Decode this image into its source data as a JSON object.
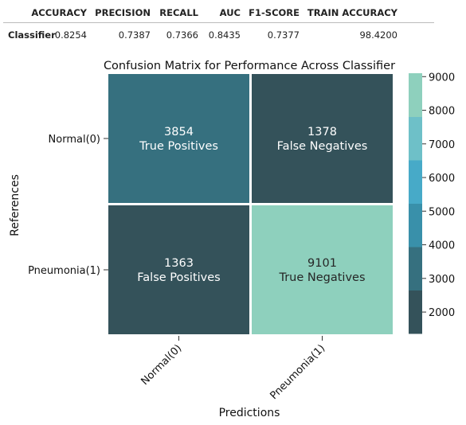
{
  "metrics_table": {
    "columns": [
      "ACCURACY",
      "PRECISION",
      "RECALL",
      "AUC",
      "F1-SCORE",
      "TRAIN ACCURACY"
    ],
    "rows": [
      {
        "label": "Classifier",
        "values": [
          "0.8254",
          "0.7387",
          "0.7366",
          "0.8435",
          "0.7377",
          "98.4200"
        ]
      }
    ]
  },
  "chart_data": {
    "type": "heatmap",
    "title": "Confusion Matrix for Performance Across Classifier",
    "xlabel": "Predictions",
    "ylabel": "References",
    "x_categories": [
      "Normal(0)",
      "Pneumonia(1)"
    ],
    "y_categories": [
      "Normal(0)",
      "Pneumonia(1)"
    ],
    "values": [
      [
        3854,
        1378
      ],
      [
        1363,
        9101
      ]
    ],
    "cell_labels": [
      [
        "True Positives",
        "False Negatives"
      ],
      [
        "False Positives",
        "True Negatives"
      ]
    ],
    "colorbar": {
      "range": [
        1363,
        9101
      ],
      "ticks": [
        2000,
        3000,
        4000,
        5000,
        6000,
        7000,
        8000,
        9000
      ],
      "palette": [
        "#34525a",
        "#36707f",
        "#3990aa",
        "#47aac8",
        "#6ec0c8",
        "#8ed0bd"
      ]
    }
  },
  "colors": {
    "text_light": "#ffffff",
    "text_dark": "#262626",
    "grid": "#ffffff"
  }
}
